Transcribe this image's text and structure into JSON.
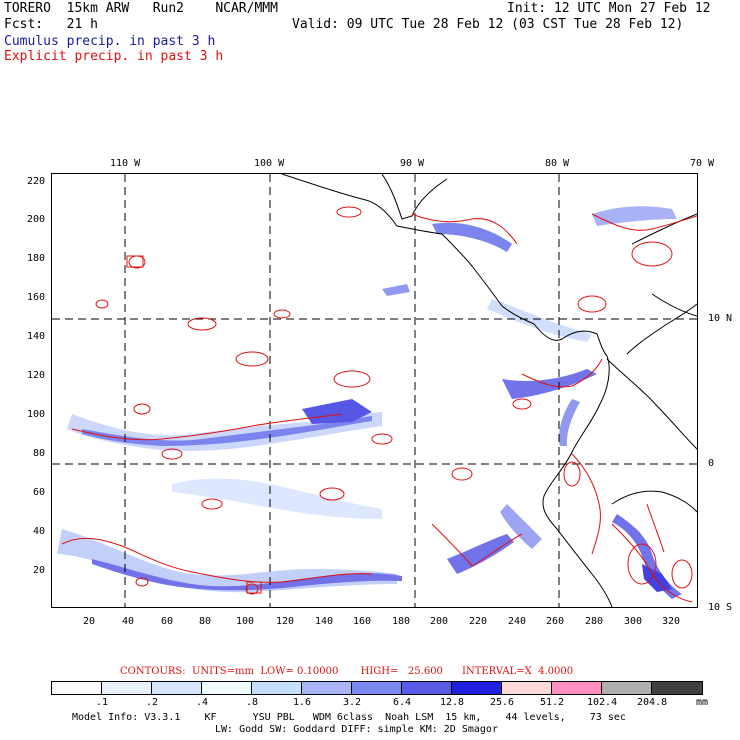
{
  "header": {
    "line1_left": "TORERO  15km ARW   Run2    NCAR/MMM",
    "line1_right": "Init: 12 UTC Mon 27 Feb 12",
    "line2_left": "Fcst:   21 h",
    "line2_right": "Valid: 09 UTC Tue 28 Feb 12 (03 CST Tue 28 Feb 12)",
    "line3": "Cumulus precip. in past 3 h",
    "line4": "Explicit precip. in past 3 h"
  },
  "map": {
    "lon_labels": [
      "110 W",
      "100 W",
      "90 W",
      "80 W",
      "70 W"
    ],
    "lat_labels_right": [
      "10 N",
      "0",
      "10 S"
    ],
    "y_ticks": [
      "220",
      "200",
      "180",
      "160",
      "140",
      "120",
      "100",
      "80",
      "60",
      "40",
      "20"
    ],
    "x_ticks": [
      "20",
      "40",
      "60",
      "80",
      "100",
      "120",
      "140",
      "160",
      "180",
      "200",
      "220",
      "240",
      "260",
      "280",
      "300",
      "320"
    ]
  },
  "colorbar": {
    "contour_info": "CONTOURS:  UNITS=mm  LOW= 0.10000       HIGH=   25.600      INTERVAL=X  4.0000",
    "labels": [
      ".1",
      ".2",
      ".4",
      ".8",
      "1.6",
      "3.2",
      "6.4",
      "12.8",
      "25.6",
      "51.2",
      "102.4",
      "204.8"
    ],
    "unit": "mm",
    "colors": [
      "#ffffff",
      "#eaf2ff",
      "#d6e6ff",
      "#f2ffff",
      "#c8e0ff",
      "#a8b4f6",
      "#7c88ee",
      "#5a5ae6",
      "#2020e0",
      "#ffd8d8",
      "#ff90c0",
      "#b0b0b0",
      "#404040",
      "#d4a0f0"
    ]
  },
  "footer": {
    "line1": "Model Info: V3.3.1    KF      YSU PBL   WDM 6class  Noah LSM  15 km,    44 levels,    73 sec",
    "line2": "LW: Godd SW: Goddard DIFF: simple KM: 2D Smagor"
  }
}
